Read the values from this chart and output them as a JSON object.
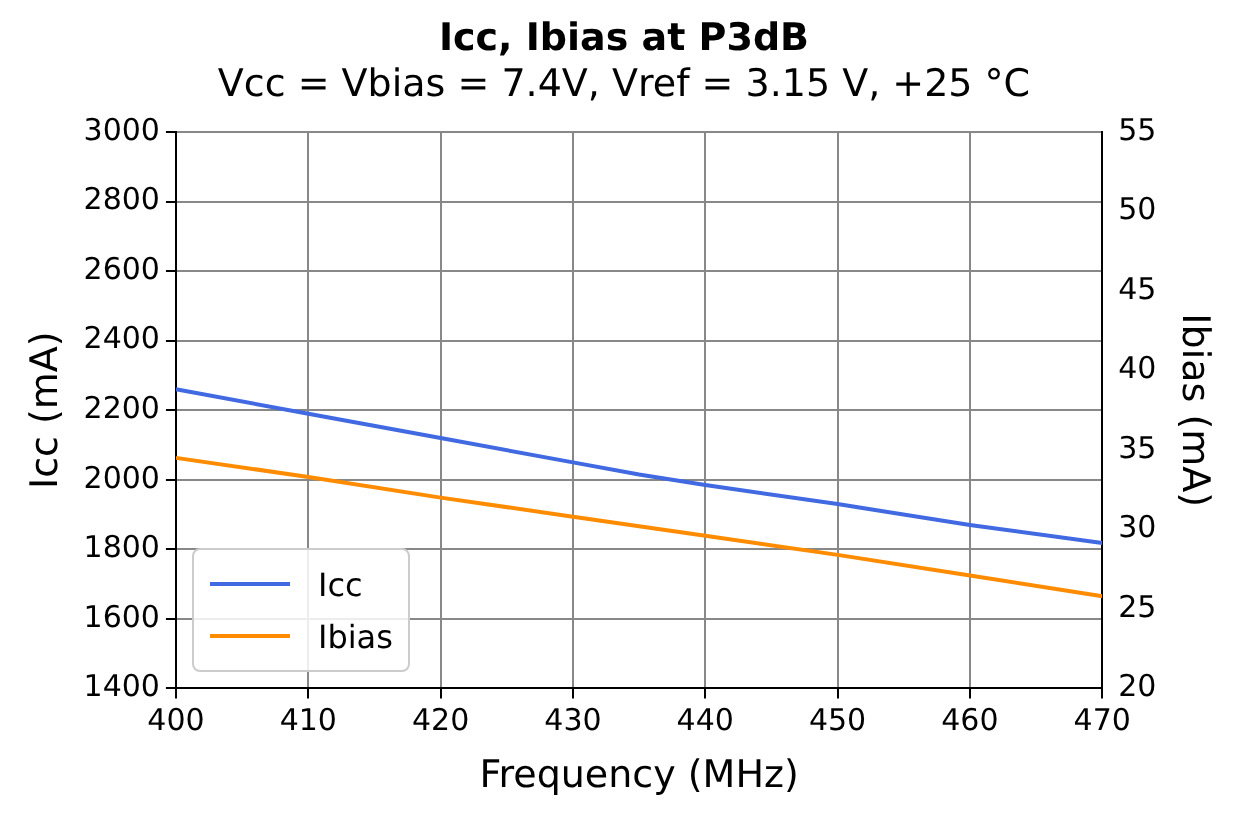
{
  "chart_data": {
    "type": "line",
    "title": "Icc, Ibias at P3dB",
    "subtitle": "Vcc = Vbias = 7.4V, Vref = 3.15 V, +25 °C",
    "xlabel": "Frequency (MHz)",
    "ylabel": "Icc (mA)",
    "y2label": "Ibias (mA)",
    "x": [
      400,
      410,
      420,
      430,
      435,
      440,
      450,
      460,
      470
    ],
    "series": [
      {
        "name": "Icc",
        "color": "#4169e1",
        "values": [
          2260,
          2190,
          2120,
          2050,
          2015,
          1985,
          1930,
          1870,
          1818
        ]
      },
      {
        "name": "Ibias",
        "color": "#ff8c00",
        "axis": "y2",
        "values": [
          34.5,
          33.3,
          32.0,
          30.8,
          30.2,
          29.6,
          28.4,
          27.1,
          25.8
        ]
      }
    ],
    "xlim": [
      400,
      470
    ],
    "xticks": [
      400,
      410,
      420,
      430,
      440,
      450,
      460,
      470
    ],
    "ylim": [
      1400,
      3000
    ],
    "yticks": [
      1400,
      1600,
      1800,
      2000,
      2200,
      2400,
      2600,
      2800,
      3000
    ],
    "y2lim": [
      20,
      55
    ],
    "y2ticks": [
      20,
      25,
      30,
      35,
      40,
      45,
      50,
      55
    ],
    "grid": true,
    "legend": "bottom left",
    "marker": "none",
    "line_style": "solid"
  }
}
